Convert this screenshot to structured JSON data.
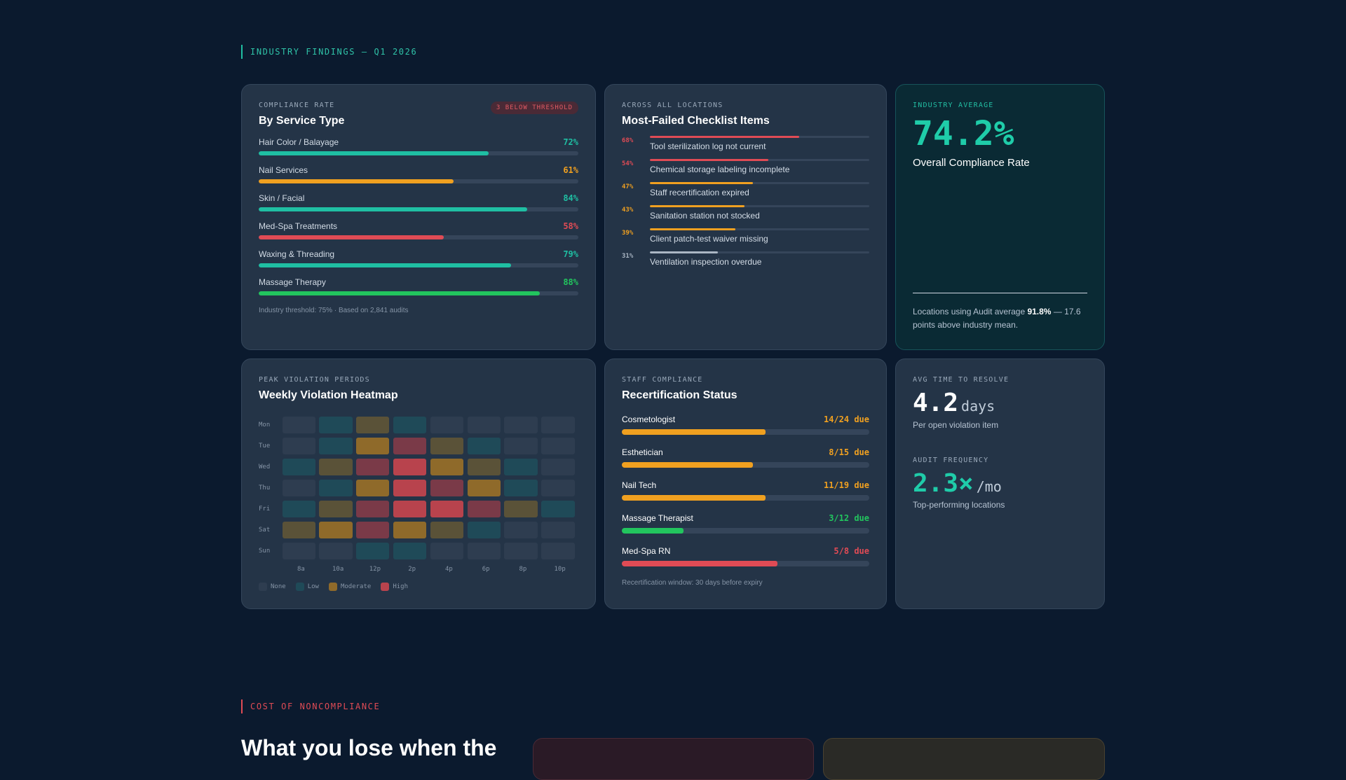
{
  "sections": {
    "findings_label": "INDUSTRY FINDINGS — Q1 2026",
    "cost_label": "COST OF NONCOMPLIANCE"
  },
  "service_card": {
    "eyebrow": "COMPLIANCE RATE",
    "title": "By Service Type",
    "badge": "3 BELOW THRESHOLD",
    "rows": [
      {
        "label": "Hair Color / Balayage",
        "value": "72%",
        "pct": 72,
        "color": "#1fbfa3"
      },
      {
        "label": "Nail Services",
        "value": "61%",
        "pct": 61,
        "color": "#f0a020"
      },
      {
        "label": "Skin / Facial",
        "value": "84%",
        "pct": 84,
        "color": "#1fbfa3"
      },
      {
        "label": "Med-Spa Treatments",
        "value": "58%",
        "pct": 58,
        "color": "#e04b55"
      },
      {
        "label": "Waxing & Threading",
        "value": "79%",
        "pct": 79,
        "color": "#1fbfa3"
      },
      {
        "label": "Massage Therapy",
        "value": "88%",
        "pct": 88,
        "color": "#22c55e"
      }
    ],
    "footnote": "Industry threshold: 75% · Based on 2,841 audits"
  },
  "failed_card": {
    "eyebrow": "ACROSS ALL LOCATIONS",
    "title": "Most-Failed Checklist Items",
    "items": [
      {
        "pct": "68%",
        "value": 68,
        "label": "Tool sterilization log not current",
        "color": "#e04b55"
      },
      {
        "pct": "54%",
        "value": 54,
        "label": "Chemical storage labeling incomplete",
        "color": "#e04b55"
      },
      {
        "pct": "47%",
        "value": 47,
        "label": "Staff recertification expired",
        "color": "#f0a020"
      },
      {
        "pct": "43%",
        "value": 43,
        "label": "Sanitation station not stocked",
        "color": "#f0a020"
      },
      {
        "pct": "39%",
        "value": 39,
        "label": "Client patch-test waiver missing",
        "color": "#f0a020"
      },
      {
        "pct": "31%",
        "value": 31,
        "label": "Ventilation inspection overdue",
        "color": "#aab6c4"
      }
    ]
  },
  "average_card": {
    "eyebrow": "INDUSTRY AVERAGE",
    "value": "74.2%",
    "subtitle": "Overall Compliance Rate",
    "note_pre": "Locations using Audit average ",
    "note_bold": "91.8%",
    "note_post": " — 17.6 points above industry mean."
  },
  "heatmap_card": {
    "eyebrow": "PEAK VIOLATION PERIODS",
    "title": "Weekly Violation Heatmap",
    "days": [
      "Mon",
      "Tue",
      "Wed",
      "Thu",
      "Fri",
      "Sat",
      "Sun"
    ],
    "hours": [
      "8a",
      "10a",
      "12p",
      "2p",
      "4p",
      "6p",
      "8p",
      "10p"
    ],
    "levels": [
      [
        0,
        1,
        2,
        1,
        0,
        0,
        0,
        0
      ],
      [
        0,
        1,
        3,
        4,
        2,
        1,
        0,
        0
      ],
      [
        1,
        2,
        4,
        5,
        3,
        2,
        1,
        0
      ],
      [
        0,
        1,
        3,
        5,
        4,
        3,
        1,
        0
      ],
      [
        1,
        2,
        4,
        5,
        5,
        4,
        2,
        1
      ],
      [
        2,
        3,
        4,
        3,
        2,
        1,
        0,
        0
      ],
      [
        0,
        0,
        1,
        1,
        0,
        0,
        0,
        0
      ]
    ],
    "level_colors": [
      "#2e3d50",
      "#1f4a58",
      "#5a5238",
      "#8f6a2a",
      "#7a3a48",
      "#b8434d"
    ],
    "legend": [
      {
        "label": "None",
        "color": "#2e3d50"
      },
      {
        "label": "Low",
        "color": "#1f4a58"
      },
      {
        "label": "Moderate",
        "color": "#8f6a2a"
      },
      {
        "label": "High",
        "color": "#b8434d"
      }
    ]
  },
  "recert_card": {
    "eyebrow": "STAFF COMPLIANCE",
    "title": "Recertification Status",
    "rows": [
      {
        "label": "Cosmetologist",
        "value": "14/24 due",
        "pct": 58,
        "color": "#f0a020"
      },
      {
        "label": "Esthetician",
        "value": "8/15 due",
        "pct": 53,
        "color": "#f0a020"
      },
      {
        "label": "Nail Tech",
        "value": "11/19 due",
        "pct": 58,
        "color": "#f0a020"
      },
      {
        "label": "Massage Therapist",
        "value": "3/12 due",
        "pct": 25,
        "color": "#22c55e"
      },
      {
        "label": "Med-Spa RN",
        "value": "5/8 due",
        "pct": 63,
        "color": "#e04b55"
      }
    ],
    "footnote": "Recertification window: 30 days before expiry"
  },
  "time_card": {
    "eyebrow1": "AVG TIME TO RESOLVE",
    "value1": "4.2",
    "unit1": "days",
    "sub1": "Per open violation item",
    "eyebrow2": "AUDIT FREQUENCY",
    "value2": "2.3×",
    "unit2": "/mo",
    "sub2": "Top-performing locations"
  },
  "bottom": {
    "heading": "What you lose when the"
  },
  "colors": {
    "bg": "#0b1a2e",
    "teal": "#1fbfa3",
    "amber": "#f0a020",
    "red": "#e04b55",
    "green": "#22c55e"
  }
}
